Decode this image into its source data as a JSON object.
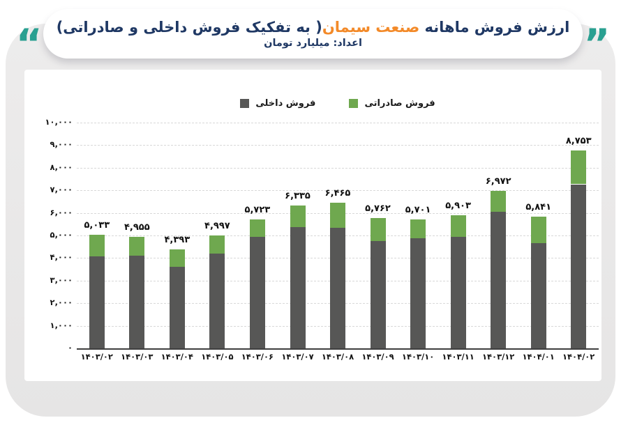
{
  "header": {
    "title_part1": "ارزش فروش ماهانه",
    "title_highlight": "صنعت سیمان",
    "title_part2": "( به تفکیک فروش داخلی و صادراتی)",
    "subtitle": "اعداد: میلیارد تومان",
    "title_color": "#1F3864",
    "highlight_color": "#F38A29",
    "quote_color": "#2AA091"
  },
  "icons": {
    "quote_left": "“",
    "quote_right": "”"
  },
  "legend": {
    "domestic_label": "فروش داخلی",
    "export_label": "فروش صادراتی",
    "domestic_color": "#575756",
    "export_color": "#6FA84F"
  },
  "chart_data": {
    "type": "bar",
    "stacked": true,
    "title": "ارزش فروش ماهانه صنعت سیمان( به تفکیک فروش داخلی و صادراتی)",
    "unit": "میلیارد تومان",
    "ylim": [
      0,
      10000
    ],
    "grid": "dashed-horizontal",
    "legend_position": "top-center",
    "categories": [
      "۱۴۰۳/۰۲",
      "۱۴۰۳/۰۳",
      "۱۴۰۳/۰۴",
      "۱۴۰۳/۰۵",
      "۱۴۰۳/۰۶",
      "۱۴۰۳/۰۷",
      "۱۴۰۳/۰۸",
      "۱۴۰۳/۰۹",
      "۱۴۰۳/۱۰",
      "۱۴۰۳/۱۱",
      "۱۴۰۳/۱۲",
      "۱۴۰۴/۰۱",
      "۱۴۰۴/۰۲"
    ],
    "series": [
      {
        "name": "فروش داخلی",
        "color": "#575756",
        "values": [
          4065,
          4100,
          3610,
          4210,
          4940,
          5380,
          5350,
          4760,
          4890,
          4950,
          6050,
          4660,
          7270
        ]
      },
      {
        "name": "فروش صادراتی",
        "color": "#6FA84F",
        "values": [
          968,
          855,
          783,
          787,
          783,
          955,
          1115,
          1002,
          811,
          953,
          922,
          1181,
          1483
        ]
      }
    ],
    "totals": [
      5033,
      4955,
      4393,
      4997,
      5723,
      6335,
      6465,
      5762,
      5701,
      5903,
      6972,
      5841,
      8753
    ],
    "total_labels": [
      "۵,۰۳۳",
      "۴,۹۵۵",
      "۴,۳۹۳",
      "۴,۹۹۷",
      "۵,۷۲۳",
      "۶,۳۳۵",
      "۶,۴۶۵",
      "۵,۷۶۲",
      "۵,۷۰۱",
      "۵,۹۰۳",
      "۶,۹۷۲",
      "۵,۸۴۱",
      "۸,۷۵۳"
    ],
    "y_tick_values": [
      0,
      1000,
      2000,
      3000,
      4000,
      5000,
      6000,
      7000,
      8000,
      9000,
      10000
    ],
    "y_tick_labels": [
      "۰",
      "۱,۰۰۰",
      "۲,۰۰۰",
      "۳,۰۰۰",
      "۴,۰۰۰",
      "۵,۰۰۰",
      "۶,۰۰۰",
      "۷,۰۰۰",
      "۸,۰۰۰",
      "۹,۰۰۰",
      "۱۰,۰۰۰"
    ]
  }
}
